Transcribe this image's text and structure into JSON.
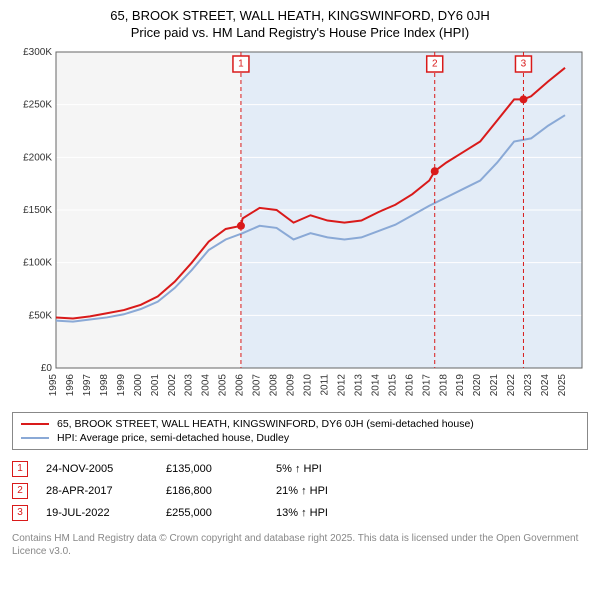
{
  "title_line1": "65, BROOK STREET, WALL HEATH, KINGSWINFORD, DY6 0JH",
  "title_line2": "Price paid vs. HM Land Registry's House Price Index (HPI)",
  "chart": {
    "type": "line",
    "background_color": "#ffffff",
    "plot_bg_left": "#f5f5f5",
    "plot_bg_shaded": "#e3ecf7",
    "xlim": [
      1995,
      2026
    ],
    "ylim": [
      0,
      300000
    ],
    "ytick_step": 50000,
    "yticks": [
      {
        "v": 0,
        "label": "£0"
      },
      {
        "v": 50000,
        "label": "£50K"
      },
      {
        "v": 100000,
        "label": "£100K"
      },
      {
        "v": 150000,
        "label": "£150K"
      },
      {
        "v": 200000,
        "label": "£200K"
      },
      {
        "v": 250000,
        "label": "£250K"
      },
      {
        "v": 300000,
        "label": "£300K"
      }
    ],
    "xticks": [
      1995,
      1996,
      1997,
      1998,
      1999,
      2000,
      2001,
      2002,
      2003,
      2004,
      2005,
      2006,
      2007,
      2008,
      2009,
      2010,
      2011,
      2012,
      2013,
      2014,
      2015,
      2016,
      2017,
      2018,
      2019,
      2020,
      2021,
      2022,
      2023,
      2024,
      2025
    ],
    "grid_color": "#ffffff",
    "shaded_from_x": 2005.9,
    "series": [
      {
        "name": "property",
        "label": "65, BROOK STREET, WALL HEATH, KINGSWINFORD, DY6 0JH (semi-detached house)",
        "color": "#d91a1a",
        "line_width": 2,
        "data": [
          [
            1995,
            48000
          ],
          [
            1996,
            47000
          ],
          [
            1997,
            49000
          ],
          [
            1998,
            52000
          ],
          [
            1999,
            55000
          ],
          [
            2000,
            60000
          ],
          [
            2001,
            68000
          ],
          [
            2002,
            82000
          ],
          [
            2003,
            100000
          ],
          [
            2004,
            120000
          ],
          [
            2005,
            132000
          ],
          [
            2005.9,
            135000
          ],
          [
            2006,
            142000
          ],
          [
            2007,
            152000
          ],
          [
            2008,
            150000
          ],
          [
            2009,
            138000
          ],
          [
            2010,
            145000
          ],
          [
            2011,
            140000
          ],
          [
            2012,
            138000
          ],
          [
            2013,
            140000
          ],
          [
            2014,
            148000
          ],
          [
            2015,
            155000
          ],
          [
            2016,
            165000
          ],
          [
            2017,
            178000
          ],
          [
            2017.32,
            186800
          ],
          [
            2018,
            195000
          ],
          [
            2019,
            205000
          ],
          [
            2020,
            215000
          ],
          [
            2021,
            235000
          ],
          [
            2022,
            255000
          ],
          [
            2022.55,
            255000
          ],
          [
            2023,
            258000
          ],
          [
            2024,
            272000
          ],
          [
            2025,
            285000
          ]
        ]
      },
      {
        "name": "hpi",
        "label": "HPI: Average price, semi-detached house, Dudley",
        "color": "#8aa9d6",
        "line_width": 2,
        "data": [
          [
            1995,
            45000
          ],
          [
            1996,
            44000
          ],
          [
            1997,
            46000
          ],
          [
            1998,
            48000
          ],
          [
            1999,
            51000
          ],
          [
            2000,
            56000
          ],
          [
            2001,
            63000
          ],
          [
            2002,
            76000
          ],
          [
            2003,
            93000
          ],
          [
            2004,
            112000
          ],
          [
            2005,
            122000
          ],
          [
            2006,
            128000
          ],
          [
            2007,
            135000
          ],
          [
            2008,
            133000
          ],
          [
            2009,
            122000
          ],
          [
            2010,
            128000
          ],
          [
            2011,
            124000
          ],
          [
            2012,
            122000
          ],
          [
            2013,
            124000
          ],
          [
            2014,
            130000
          ],
          [
            2015,
            136000
          ],
          [
            2016,
            145000
          ],
          [
            2017,
            154000
          ],
          [
            2018,
            162000
          ],
          [
            2019,
            170000
          ],
          [
            2020,
            178000
          ],
          [
            2021,
            195000
          ],
          [
            2022,
            215000
          ],
          [
            2023,
            218000
          ],
          [
            2024,
            230000
          ],
          [
            2025,
            240000
          ]
        ]
      }
    ],
    "event_markers": [
      {
        "n": "1",
        "x": 2005.9,
        "y": 135000,
        "color": "#d91a1a"
      },
      {
        "n": "2",
        "x": 2017.32,
        "y": 186800,
        "color": "#d91a1a"
      },
      {
        "n": "3",
        "x": 2022.55,
        "y": 255000,
        "color": "#d91a1a"
      }
    ]
  },
  "legend": {
    "items": [
      {
        "color": "#d91a1a",
        "label": "65, BROOK STREET, WALL HEATH, KINGSWINFORD, DY6 0JH (semi-detached house)"
      },
      {
        "color": "#8aa9d6",
        "label": "HPI: Average price, semi-detached house, Dudley"
      }
    ]
  },
  "events": [
    {
      "n": "1",
      "color": "#d91a1a",
      "date": "24-NOV-2005",
      "price": "£135,000",
      "pct": "5% ↑ HPI"
    },
    {
      "n": "2",
      "color": "#d91a1a",
      "date": "28-APR-2017",
      "price": "£186,800",
      "pct": "21% ↑ HPI"
    },
    {
      "n": "3",
      "color": "#d91a1a",
      "date": "19-JUL-2022",
      "price": "£255,000",
      "pct": "13% ↑ HPI"
    }
  ],
  "disclaimer": "Contains HM Land Registry data © Crown copyright and database right 2025. This data is licensed under the Open Government Licence v3.0."
}
